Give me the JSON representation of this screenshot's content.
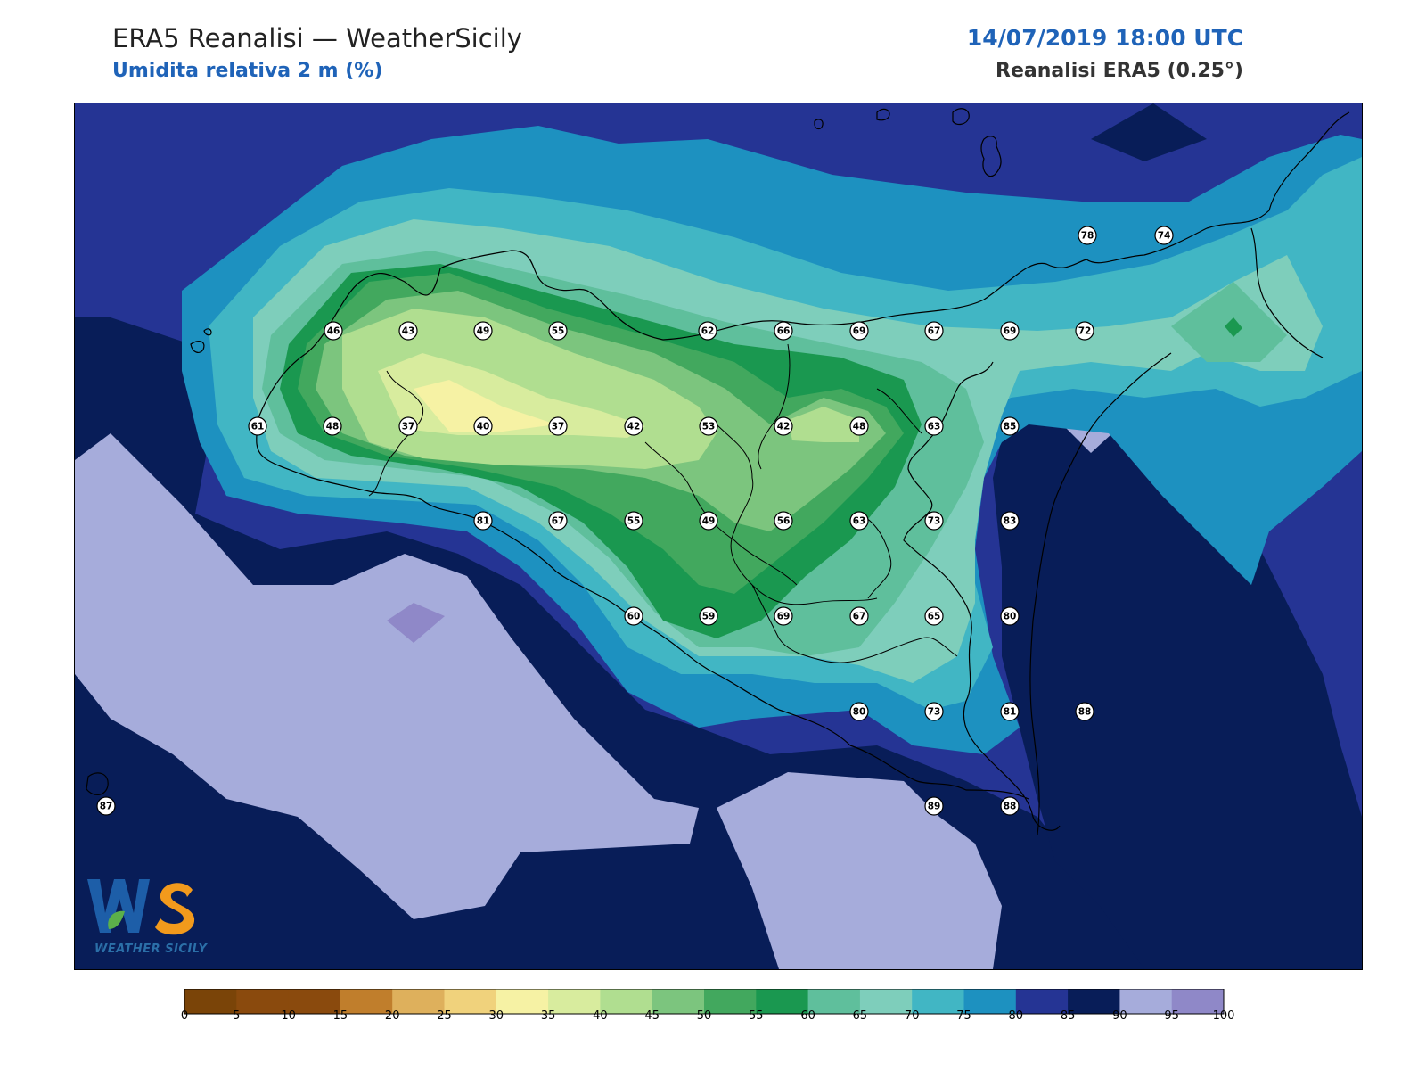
{
  "header": {
    "title": "ERA5 Reanalisi — WeatherSicily",
    "subtitle": "Umidita relativa 2 m (%)",
    "datetime": "14/07/2019 18:00 UTC",
    "source": "Reanalisi ERA5 (0.25°)"
  },
  "logo": {
    "text": "WEATHER SICILY"
  },
  "colorbar": {
    "ticks": [
      "0",
      "5",
      "10",
      "15",
      "20",
      "25",
      "30",
      "35",
      "40",
      "45",
      "50",
      "55",
      "60",
      "65",
      "70",
      "75",
      "80",
      "85",
      "90",
      "95",
      "100"
    ],
    "colors": [
      "#7a4408",
      "#8a4a0d",
      "#8a4a0d",
      "#c07e2c",
      "#deb05c",
      "#f0d27c",
      "#f6f2a4",
      "#d8ec9e",
      "#b0de90",
      "#7cc57e",
      "#42a85e",
      "#1a9850",
      "#5fbf9c",
      "#7ecebb",
      "#41b6c4",
      "#1d91c0",
      "#253494",
      "#081d58",
      "#a6acdb",
      "#8f88c8"
    ]
  },
  "stations": [
    {
      "v": "78"
    },
    {
      "v": "74"
    },
    {
      "v": "46"
    },
    {
      "v": "43"
    },
    {
      "v": "49"
    },
    {
      "v": "55"
    },
    {
      "v": "62"
    },
    {
      "v": "66"
    },
    {
      "v": "69"
    },
    {
      "v": "67"
    },
    {
      "v": "69"
    },
    {
      "v": "72"
    },
    {
      "v": "61"
    },
    {
      "v": "48"
    },
    {
      "v": "37"
    },
    {
      "v": "40"
    },
    {
      "v": "37"
    },
    {
      "v": "42"
    },
    {
      "v": "53"
    },
    {
      "v": "42"
    },
    {
      "v": "48"
    },
    {
      "v": "63"
    },
    {
      "v": "85"
    },
    {
      "v": "81"
    },
    {
      "v": "67"
    },
    {
      "v": "55"
    },
    {
      "v": "49"
    },
    {
      "v": "56"
    },
    {
      "v": "63"
    },
    {
      "v": "73"
    },
    {
      "v": "83"
    },
    {
      "v": "60"
    },
    {
      "v": "59"
    },
    {
      "v": "69"
    },
    {
      "v": "67"
    },
    {
      "v": "65"
    },
    {
      "v": "80"
    },
    {
      "v": "80"
    },
    {
      "v": "73"
    },
    {
      "v": "81"
    },
    {
      "v": "88"
    },
    {
      "v": "87"
    },
    {
      "v": "89"
    },
    {
      "v": "88"
    }
  ]
}
